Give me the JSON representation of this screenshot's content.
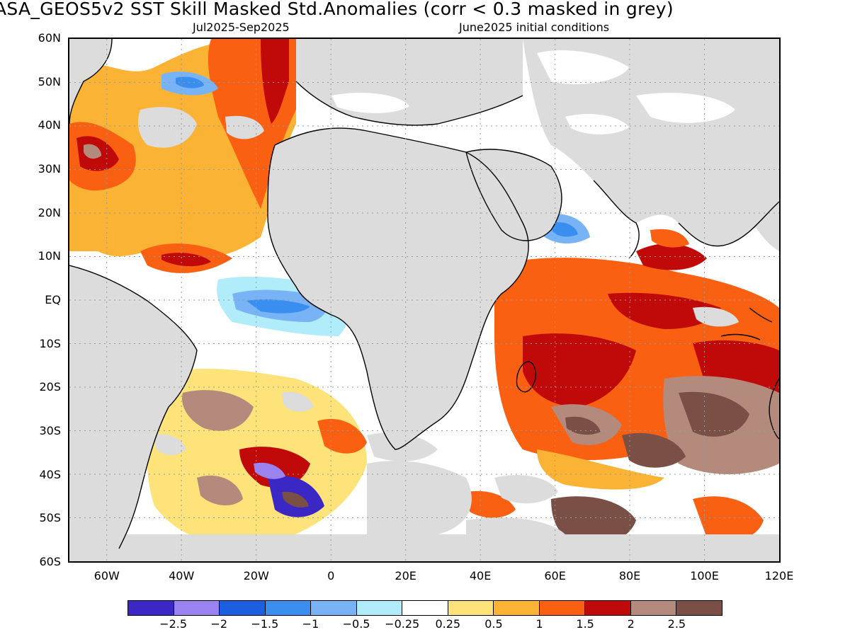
{
  "title": "ASA_GEOS5v2  SST Skill Masked Std.Anomalies (corr < 0.3 masked in grey)",
  "subtitle_left": "Jul2025-Sep2025",
  "subtitle_right": "June2025 initial conditions",
  "lat_labels": [
    "60N",
    "50N",
    "40N",
    "30N",
    "20N",
    "10N",
    "EQ",
    "10S",
    "20S",
    "30S",
    "40S",
    "50S",
    "60S"
  ],
  "lon_labels": [
    "60W",
    "40W",
    "20W",
    "0",
    "20E",
    "40E",
    "60E",
    "80E",
    "100E",
    "120E"
  ],
  "colorbar": {
    "colors": [
      "#3b28c4",
      "#9a83f0",
      "#1b5fe0",
      "#3a8ef0",
      "#78b4f5",
      "#b0ecfa",
      "#ffffff",
      "#fde37a",
      "#fbb335",
      "#fa6012",
      "#c00a0a",
      "#b48a7c",
      "#7a4f45"
    ],
    "labels": [
      "−2.5",
      "−2",
      "−1.5",
      "−1",
      "−0.5",
      "−0.25",
      "0.25",
      "0.5",
      "1",
      "1.5",
      "2",
      "2.5"
    ]
  },
  "colors": {
    "mask_grey": "#dcdcdc",
    "land": "#dcdcdc",
    "coastline": "#000000",
    "grid": "#9a9a9a"
  }
}
